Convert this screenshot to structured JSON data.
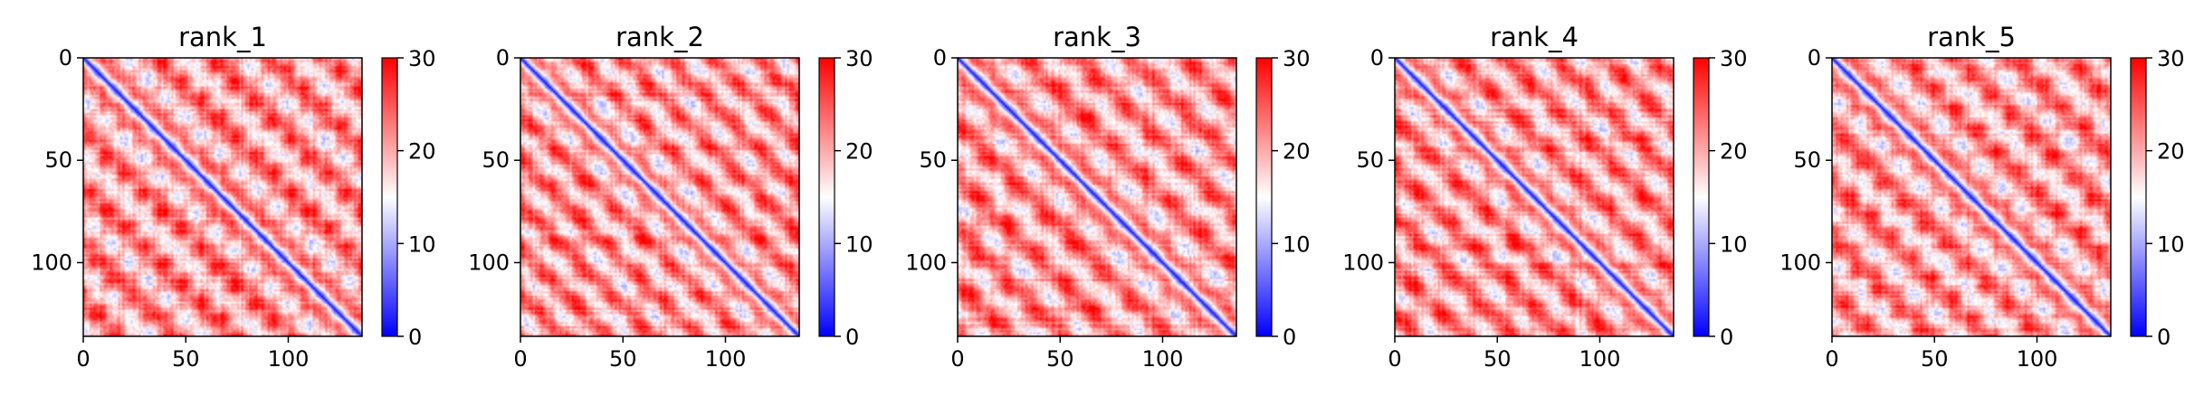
{
  "chart_data": [
    {
      "type": "heatmap",
      "title": "rank_1",
      "grid": false,
      "xticks": [
        "0",
        "50",
        "100"
      ],
      "yticks": [
        "0",
        "50",
        "100"
      ],
      "xlim": [
        0,
        136
      ],
      "ylim": [
        136,
        0
      ],
      "colorbar": {
        "colormap": "bwr",
        "range": [
          0,
          30
        ],
        "ticks": [
          "0",
          "10",
          "20",
          "30"
        ]
      }
    },
    {
      "type": "heatmap",
      "title": "rank_2",
      "grid": false,
      "xticks": [
        "0",
        "50",
        "100"
      ],
      "yticks": [
        "0",
        "50",
        "100"
      ],
      "xlim": [
        0,
        136
      ],
      "ylim": [
        136,
        0
      ],
      "colorbar": {
        "colormap": "bwr",
        "range": [
          0,
          30
        ],
        "ticks": [
          "0",
          "10",
          "20",
          "30"
        ]
      }
    },
    {
      "type": "heatmap",
      "title": "rank_3",
      "grid": false,
      "xticks": [
        "0",
        "50",
        "100"
      ],
      "yticks": [
        "0",
        "50",
        "100"
      ],
      "xlim": [
        0,
        136
      ],
      "ylim": [
        136,
        0
      ],
      "colorbar": {
        "colormap": "bwr",
        "range": [
          0,
          30
        ],
        "ticks": [
          "0",
          "10",
          "20",
          "30"
        ]
      }
    },
    {
      "type": "heatmap",
      "title": "rank_4",
      "grid": false,
      "xticks": [
        "0",
        "50",
        "100"
      ],
      "yticks": [
        "0",
        "50",
        "100"
      ],
      "xlim": [
        0,
        136
      ],
      "ylim": [
        136,
        0
      ],
      "colorbar": {
        "colormap": "bwr",
        "range": [
          0,
          30
        ],
        "ticks": [
          "0",
          "10",
          "20",
          "30"
        ]
      }
    },
    {
      "type": "heatmap",
      "title": "rank_5",
      "grid": false,
      "xticks": [
        "0",
        "50",
        "100"
      ],
      "yticks": [
        "0",
        "50",
        "100"
      ],
      "xlim": [
        0,
        136
      ],
      "ylim": [
        136,
        0
      ],
      "colorbar": {
        "colormap": "bwr",
        "range": [
          0,
          30
        ],
        "ticks": [
          "0",
          "10",
          "20",
          "30"
        ]
      }
    }
  ],
  "colors": {
    "low": "#0000ff",
    "mid": "#ffffff",
    "high": "#ff0000",
    "axis": "#000000"
  }
}
